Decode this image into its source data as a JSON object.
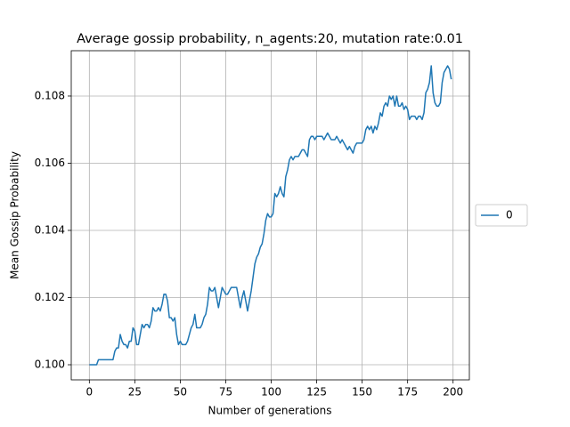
{
  "chart_data": {
    "type": "line",
    "title": "Average gossip probability, n_agents:20, mutation rate:0.01",
    "xlabel": "Number of generations",
    "ylabel": "Mean Gossip Probability",
    "x": [
      0,
      1,
      2,
      3,
      4,
      5,
      6,
      7,
      8,
      9,
      10,
      11,
      12,
      13,
      14,
      15,
      16,
      17,
      18,
      19,
      20,
      21,
      22,
      23,
      24,
      25,
      26,
      27,
      28,
      29,
      30,
      31,
      32,
      33,
      34,
      35,
      36,
      37,
      38,
      39,
      40,
      41,
      42,
      43,
      44,
      45,
      46,
      47,
      48,
      49,
      50,
      51,
      52,
      53,
      54,
      55,
      56,
      57,
      58,
      59,
      60,
      61,
      62,
      63,
      64,
      65,
      66,
      67,
      68,
      69,
      70,
      71,
      72,
      73,
      74,
      75,
      76,
      77,
      78,
      79,
      80,
      81,
      82,
      83,
      84,
      85,
      86,
      87,
      88,
      89,
      90,
      91,
      92,
      93,
      94,
      95,
      96,
      97,
      98,
      99,
      100,
      101,
      102,
      103,
      104,
      105,
      106,
      107,
      108,
      109,
      110,
      111,
      112,
      113,
      114,
      115,
      116,
      117,
      118,
      119,
      120,
      121,
      122,
      123,
      124,
      125,
      126,
      127,
      128,
      129,
      130,
      131,
      132,
      133,
      134,
      135,
      136,
      137,
      138,
      139,
      140,
      141,
      142,
      143,
      144,
      145,
      146,
      147,
      148,
      149,
      150,
      151,
      152,
      153,
      154,
      155,
      156,
      157,
      158,
      159,
      160,
      161,
      162,
      163,
      164,
      165,
      166,
      167,
      168,
      169,
      170,
      171,
      172,
      173,
      174,
      175,
      176,
      177,
      178,
      179,
      180,
      181,
      182,
      183,
      184,
      185,
      186,
      187,
      188,
      189,
      190,
      191,
      192,
      193,
      194,
      195,
      196,
      197,
      198,
      199
    ],
    "series": [
      {
        "name": "0",
        "color": "#1f77b4",
        "values": [
          0.1,
          0.1,
          0.1,
          0.1,
          0.1,
          0.10015,
          0.10015,
          0.10015,
          0.10015,
          0.10015,
          0.10015,
          0.10015,
          0.10015,
          0.10015,
          0.1004,
          0.1005,
          0.1005,
          0.1009,
          0.1007,
          0.1006,
          0.1006,
          0.1005,
          0.1007,
          0.1007,
          0.1011,
          0.101,
          0.1006,
          0.1006,
          0.1009,
          0.1012,
          0.1011,
          0.1012,
          0.1012,
          0.1011,
          0.1013,
          0.1017,
          0.1016,
          0.1016,
          0.1017,
          0.1016,
          0.1018,
          0.1021,
          0.1021,
          0.1019,
          0.1014,
          0.1014,
          0.1013,
          0.1014,
          0.1009,
          0.1006,
          0.1007,
          0.1006,
          0.1006,
          0.1006,
          0.1007,
          0.1009,
          0.1011,
          0.1012,
          0.1015,
          0.1011,
          0.1011,
          0.1011,
          0.1012,
          0.1014,
          0.1015,
          0.1018,
          0.1023,
          0.1022,
          0.1022,
          0.1023,
          0.102,
          0.1017,
          0.102,
          0.1023,
          0.1022,
          0.1021,
          0.1021,
          0.1022,
          0.1023,
          0.1023,
          0.1023,
          0.1023,
          0.102,
          0.1017,
          0.102,
          0.1022,
          0.1019,
          0.1016,
          0.1019,
          0.1022,
          0.1026,
          0.103,
          0.1032,
          0.1033,
          0.1035,
          0.1036,
          0.1039,
          0.1043,
          0.1045,
          0.1044,
          0.1044,
          0.1045,
          0.1051,
          0.105,
          0.1051,
          0.1053,
          0.1051,
          0.105,
          0.1056,
          0.1058,
          0.1061,
          0.1062,
          0.1061,
          0.1062,
          0.1062,
          0.1062,
          0.1063,
          0.1064,
          0.1064,
          0.1063,
          0.1062,
          0.1067,
          0.1068,
          0.1068,
          0.1067,
          0.1068,
          0.1068,
          0.1068,
          0.1068,
          0.1067,
          0.1068,
          0.1069,
          0.1068,
          0.1067,
          0.1067,
          0.1067,
          0.1068,
          0.1067,
          0.1066,
          0.1067,
          0.1066,
          0.1065,
          0.1064,
          0.1065,
          0.1064,
          0.1063,
          0.1065,
          0.1066,
          0.1066,
          0.1066,
          0.1066,
          0.1067,
          0.107,
          0.1071,
          0.107,
          0.1071,
          0.1069,
          0.1071,
          0.107,
          0.1072,
          0.1075,
          0.1074,
          0.1077,
          0.1078,
          0.1077,
          0.108,
          0.1079,
          0.108,
          0.1077,
          0.108,
          0.1077,
          0.1077,
          0.1078,
          0.1076,
          0.1077,
          0.1076,
          0.1073,
          0.1074,
          0.1074,
          0.1074,
          0.1073,
          0.1074,
          0.1074,
          0.1073,
          0.1075,
          0.1081,
          0.1082,
          0.1084,
          0.1089,
          0.1081,
          0.1078,
          0.1077,
          0.1077,
          0.1078,
          0.1084,
          0.1087,
          0.1088,
          0.1089,
          0.1088,
          0.1085
        ]
      }
    ],
    "xlim": [
      -9.95,
      208.95
    ],
    "xticks": [
      0,
      25,
      50,
      75,
      100,
      125,
      150,
      175,
      200
    ],
    "ylim": [
      0.09955,
      0.10935
    ],
    "yticks": [
      {
        "value": 0.1,
        "label": "0.100"
      },
      {
        "value": 0.102,
        "label": "0.102"
      },
      {
        "value": 0.104,
        "label": "0.104"
      },
      {
        "value": 0.106,
        "label": "0.106"
      },
      {
        "value": 0.108,
        "label": "0.108"
      }
    ],
    "grid": true,
    "legend": "right"
  }
}
